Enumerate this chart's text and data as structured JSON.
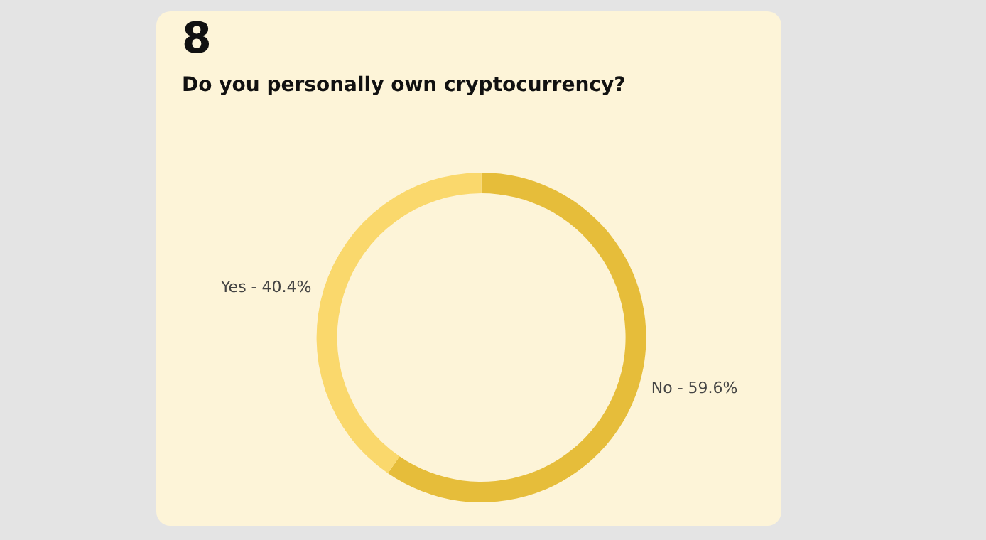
{
  "chart_data": {
    "type": "donut",
    "title": "Do you personally own cryptocurrency?",
    "annotations": [
      "8"
    ],
    "categories": [
      "No",
      "Yes"
    ],
    "values": [
      59.6,
      40.4
    ],
    "colors": [
      "#e6bd3a",
      "#fad86c"
    ],
    "value_labels": [
      "59.6%",
      "40.4%"
    ],
    "legend": false
  }
}
